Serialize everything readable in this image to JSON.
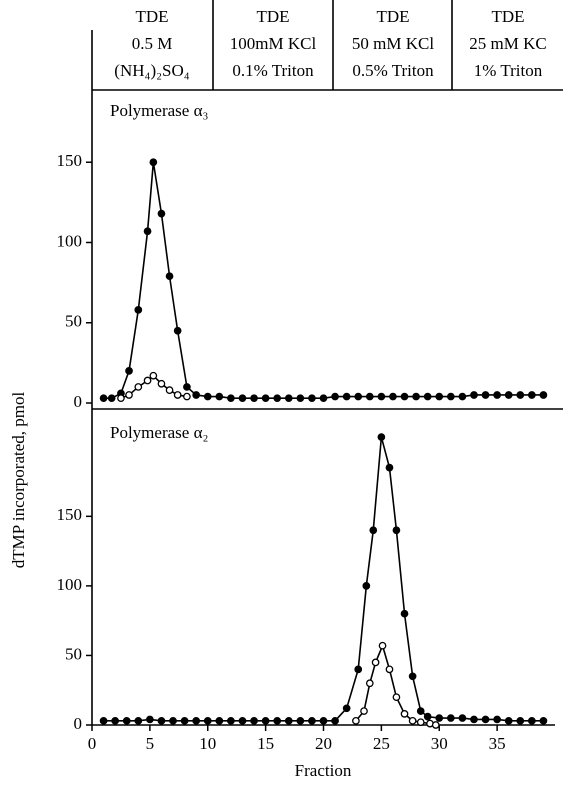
{
  "header": {
    "columns": [
      [
        "TDE",
        "0.5 M",
        "(NH₄)₂SO₄"
      ],
      [
        "TDE",
        "100mM KCl",
        "0.1% Triton"
      ],
      [
        "TDE",
        "50 mM KCl",
        "0.5% Triton"
      ],
      [
        "TDE",
        "25 mM KC",
        "1% Triton"
      ]
    ]
  },
  "axis_labels": {
    "y": "dTMP incorporated, pmol",
    "x": "Fraction"
  },
  "chart_data": [
    {
      "type": "line",
      "annotation": "Polymerase α₃",
      "xlim": [
        0,
        40
      ],
      "ylim": [
        0,
        195
      ],
      "yticks": [
        0,
        50,
        100,
        150
      ],
      "series": [
        {
          "color": "#000000",
          "marker": "filled",
          "x": [
            1,
            1.7,
            2.5,
            3.2,
            4,
            4.8,
            5.3,
            6,
            6.7,
            7.4,
            8.2,
            9,
            10,
            11,
            12,
            13,
            14,
            15,
            16,
            17,
            18,
            19,
            20,
            21,
            22,
            23,
            24,
            25,
            26,
            27,
            28,
            29,
            30,
            31,
            32,
            33,
            34,
            35,
            36,
            37,
            38,
            39
          ],
          "values": [
            3,
            3,
            6,
            20,
            58,
            107,
            150,
            118,
            79,
            45,
            10,
            5,
            4,
            4,
            3,
            3,
            3,
            3,
            3,
            3,
            3,
            3,
            3,
            4,
            4,
            4,
            4,
            4,
            4,
            4,
            4,
            4,
            4,
            4,
            4,
            5,
            5,
            5,
            5,
            5,
            5,
            5
          ]
        },
        {
          "color": "#000000",
          "marker": "open",
          "x": [
            2.5,
            3.2,
            4,
            4.8,
            5.3,
            6,
            6.7,
            7.4,
            8.2
          ],
          "values": [
            3,
            5,
            10,
            14,
            17,
            12,
            8,
            5,
            4
          ]
        }
      ]
    },
    {
      "type": "line",
      "annotation": "Polymerase α₂",
      "xlim": [
        0,
        40
      ],
      "ylim": [
        0,
        225
      ],
      "yticks": [
        0,
        50,
        100,
        150
      ],
      "xticks": [
        0,
        5,
        10,
        15,
        20,
        25,
        30,
        35
      ],
      "series": [
        {
          "color": "#000000",
          "marker": "filled",
          "x": [
            1,
            2,
            3,
            4,
            5,
            6,
            7,
            8,
            9,
            10,
            11,
            12,
            13,
            14,
            15,
            16,
            17,
            18,
            19,
            20,
            21,
            22,
            23,
            23.7,
            24.3,
            25,
            25.7,
            26.3,
            27,
            27.7,
            28.4,
            29,
            30,
            31,
            32,
            33,
            34,
            35,
            36,
            37,
            38,
            39
          ],
          "values": [
            3,
            3,
            3,
            3,
            4,
            3,
            3,
            3,
            3,
            3,
            3,
            3,
            3,
            3,
            3,
            3,
            3,
            3,
            3,
            3,
            3,
            12,
            40,
            100,
            140,
            207,
            185,
            140,
            80,
            35,
            10,
            6,
            5,
            5,
            5,
            4,
            4,
            4,
            3,
            3,
            3,
            3
          ]
        },
        {
          "color": "#000000",
          "marker": "open",
          "x": [
            22.8,
            23.5,
            24,
            24.5,
            25.1,
            25.7,
            26.3,
            27,
            27.7,
            28.4,
            29.2,
            29.7
          ],
          "values": [
            3,
            10,
            30,
            45,
            57,
            40,
            20,
            8,
            3,
            2,
            1,
            0
          ]
        }
      ]
    }
  ]
}
